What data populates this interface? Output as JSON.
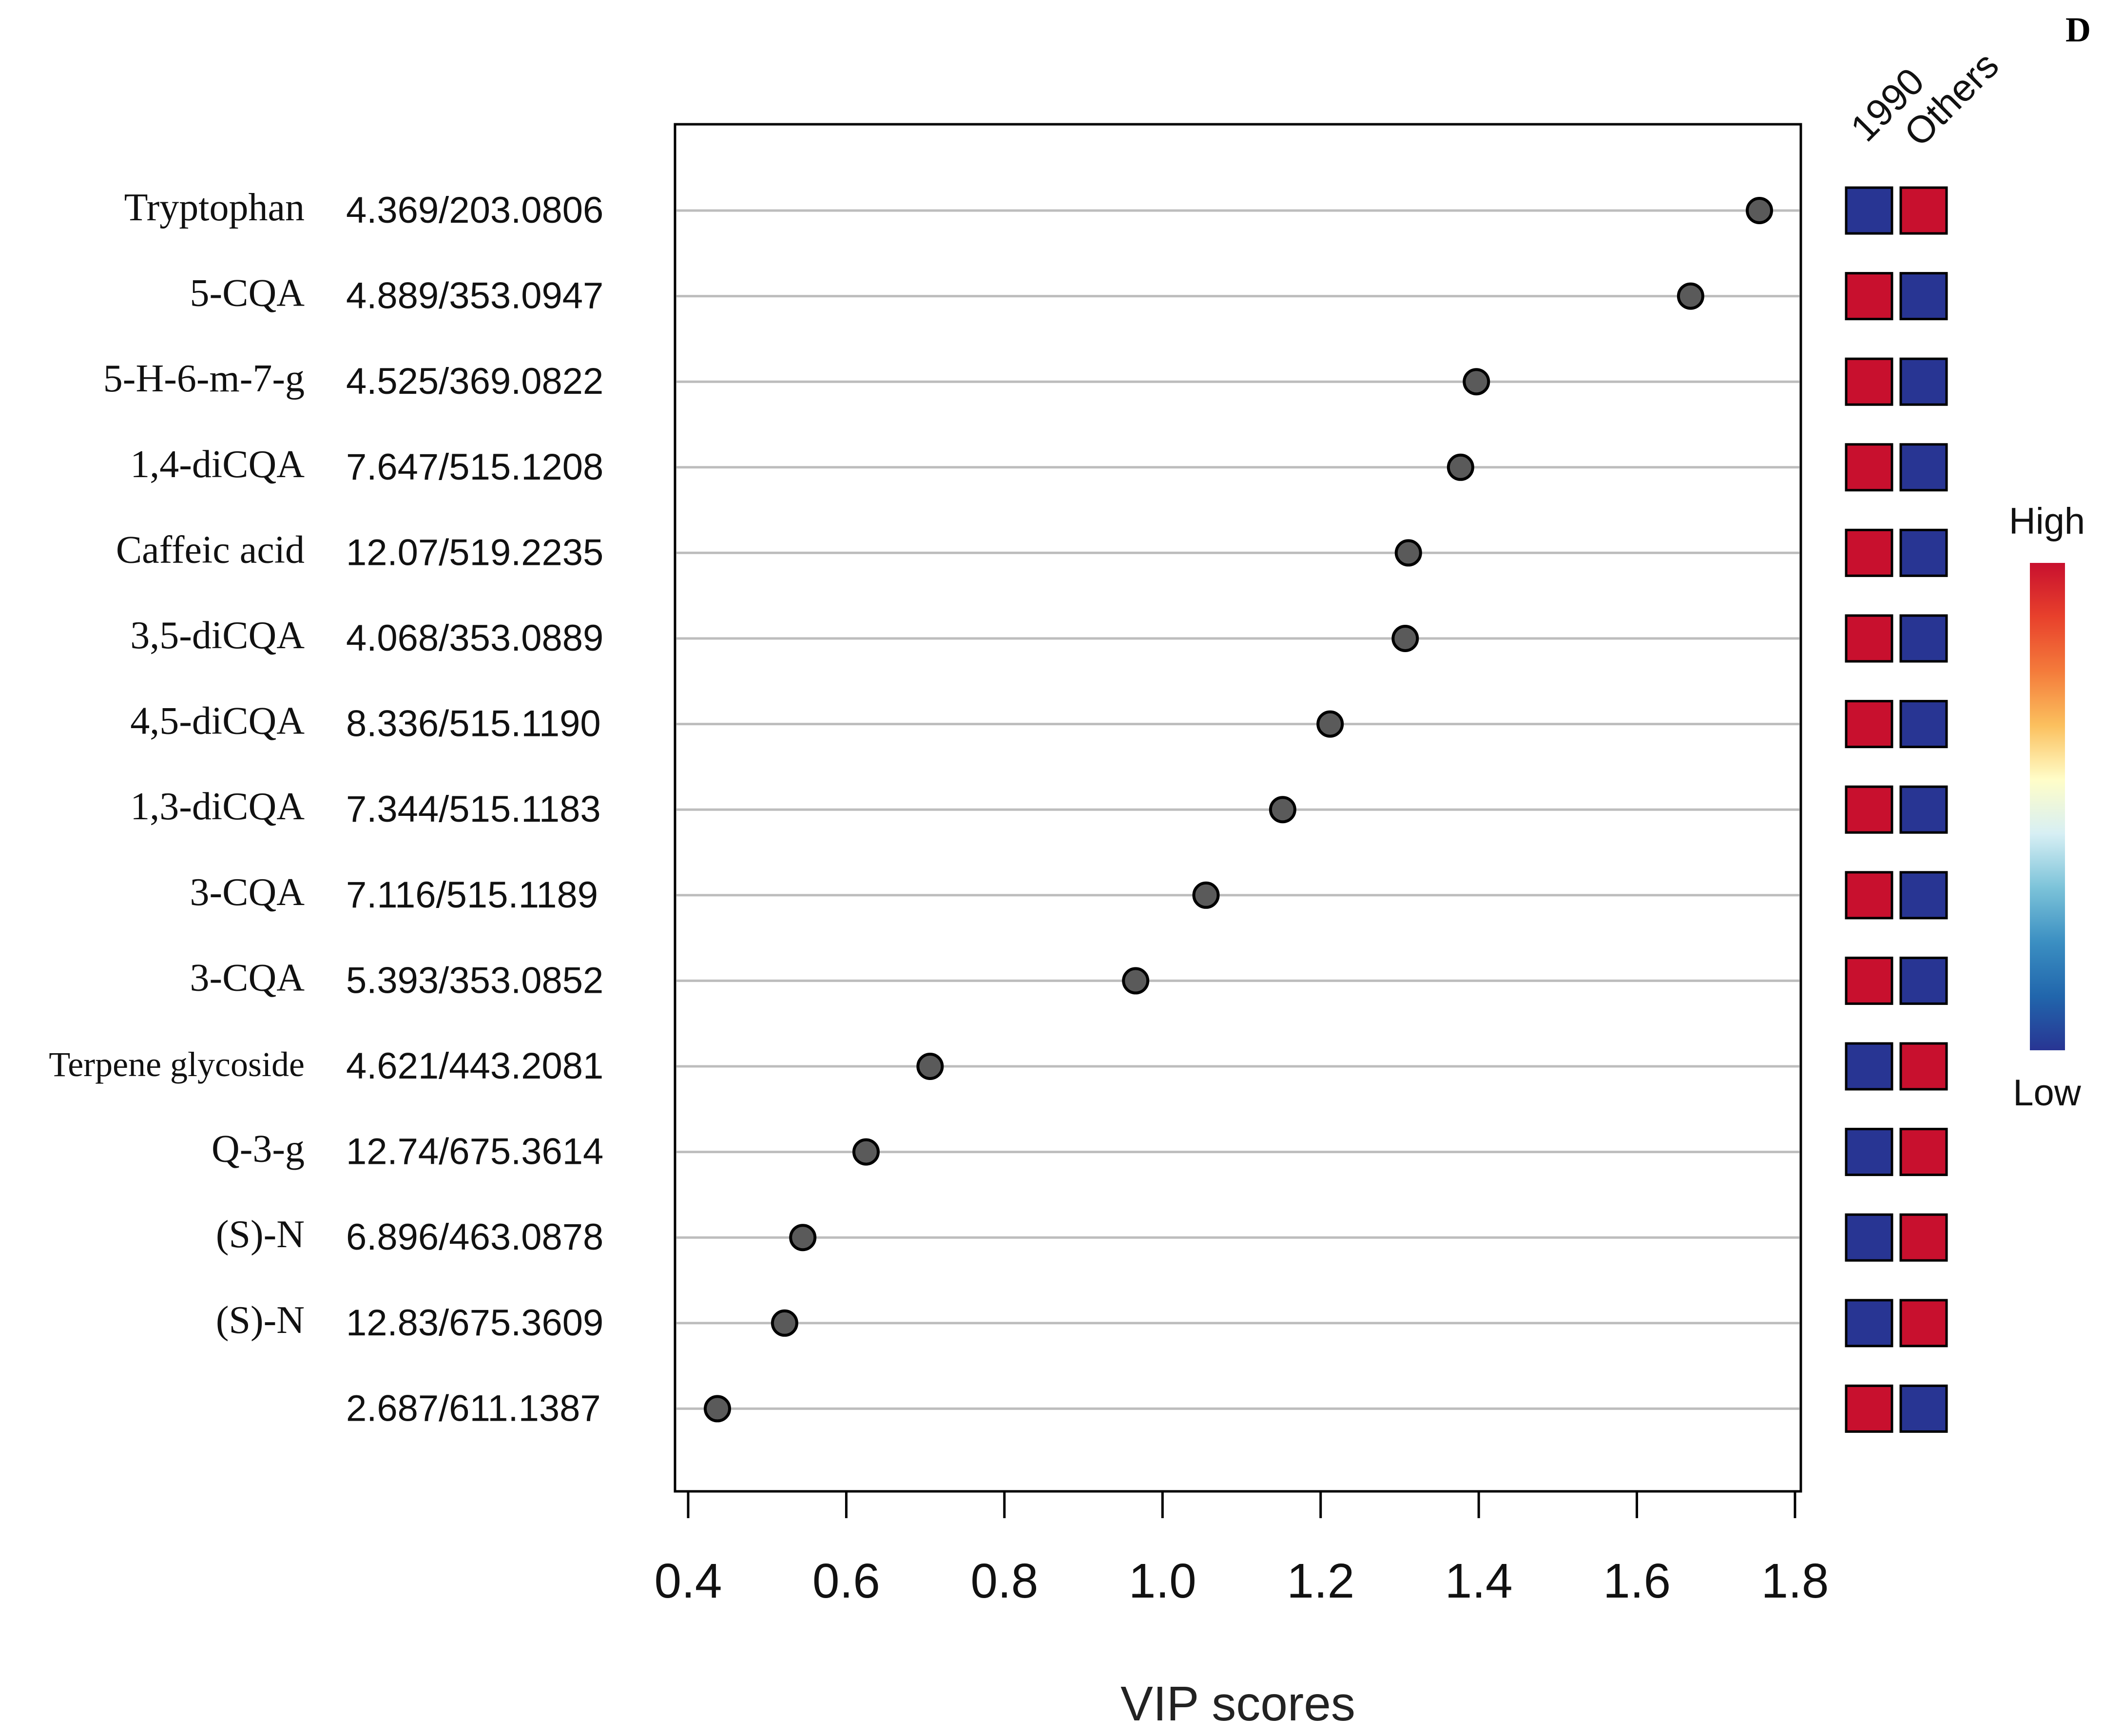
{
  "chart_data": {
    "type": "scatter",
    "panel_label": "D",
    "xlabel": "VIP scores",
    "xlim": [
      0.4,
      1.8
    ],
    "xticks": [
      0.4,
      0.6,
      0.8,
      1.0,
      1.2,
      1.4,
      1.6,
      1.8
    ],
    "xtick_labels": [
      "0.4",
      "0.6",
      "0.8",
      "1.0",
      "1.2",
      "1.4",
      "1.6",
      "1.8"
    ],
    "group_labels": [
      "1990",
      "Others"
    ],
    "legend": {
      "title_high": "High",
      "title_low": "Low",
      "placement": "right"
    },
    "colors": {
      "high": "#c8102e",
      "low": "#283593",
      "point": "#5a5a5a",
      "gridline": "#bdbdbd"
    },
    "gradient": [
      "#c8102e",
      "#e8412c",
      "#f47b3b",
      "#fbc05e",
      "#fffdc8",
      "#d7eff4",
      "#7cc3d9",
      "#3b8fc2",
      "#2166ac",
      "#283593"
    ],
    "rows": [
      {
        "name": "Tryptophan",
        "id": "4.369/203.0806",
        "vip": 1.755,
        "levels": [
          "low",
          "high"
        ]
      },
      {
        "name": "5-CQA",
        "id": "4.889/353.0947",
        "vip": 1.668,
        "levels": [
          "high",
          "low"
        ]
      },
      {
        "name": "5-H-6-m-7-g",
        "id": "4.525/369.0822",
        "vip": 1.397,
        "levels": [
          "high",
          "low"
        ]
      },
      {
        "name": "1,4-diCQA",
        "id": "7.647/515.1208",
        "vip": 1.377,
        "levels": [
          "high",
          "low"
        ]
      },
      {
        "name": "Caffeic acid",
        "id": "12.07/519.2235",
        "vip": 1.311,
        "levels": [
          "high",
          "low"
        ]
      },
      {
        "name": "3,5-diCQA",
        "id": "4.068/353.0889",
        "vip": 1.307,
        "levels": [
          "high",
          "low"
        ]
      },
      {
        "name": "4,5-diCQA",
        "id": "8.336/515.1190",
        "vip": 1.212,
        "levels": [
          "high",
          "low"
        ]
      },
      {
        "name": "1,3-diCQA",
        "id": "7.344/515.1183",
        "vip": 1.152,
        "levels": [
          "high",
          "low"
        ]
      },
      {
        "name": "3-CQA",
        "id": "7.116/515.1189",
        "vip": 1.055,
        "levels": [
          "high",
          "low"
        ]
      },
      {
        "name": "3-CQA",
        "id": "5.393/353.0852",
        "vip": 0.966,
        "levels": [
          "high",
          "low"
        ]
      },
      {
        "name": "Terpene glycoside",
        "id": "4.621/443.2081",
        "vip": 0.706,
        "levels": [
          "low",
          "high"
        ]
      },
      {
        "name": "Q-3-g",
        "id": "12.74/675.3614",
        "vip": 0.625,
        "levels": [
          "low",
          "high"
        ]
      },
      {
        "name": "(S)-N",
        "id": "6.896/463.0878",
        "vip": 0.545,
        "levels": [
          "low",
          "high"
        ]
      },
      {
        "name": "(S)-N",
        "id": "12.83/675.3609",
        "vip": 0.522,
        "levels": [
          "low",
          "high"
        ]
      },
      {
        "name": "",
        "id": "2.687/611.1387",
        "vip": 0.437,
        "levels": [
          "high",
          "low"
        ]
      }
    ]
  }
}
